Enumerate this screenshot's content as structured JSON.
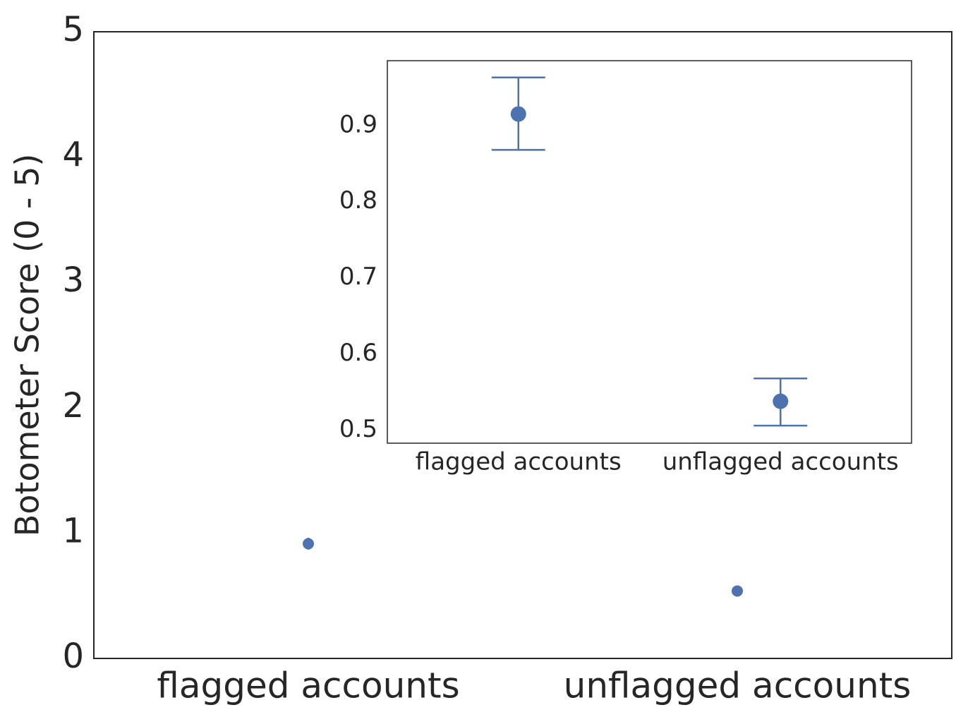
{
  "chart_data": [
    {
      "type": "point",
      "y_label": "Botometer Score (0 - 5)",
      "categories": [
        "flagged accounts",
        "unflagged accounts"
      ],
      "values": [
        0.915,
        0.538
      ],
      "lower": [
        0.868,
        0.506
      ],
      "upper": [
        0.963,
        0.568
      ],
      "color": "#4c72b0",
      "ylim": [
        0,
        5
      ],
      "yticks": [
        0,
        1,
        2,
        3,
        4,
        5
      ],
      "grid": false
    },
    {
      "type": "point",
      "categories": [
        "flagged accounts",
        "unflagged accounts"
      ],
      "values": [
        0.915,
        0.538
      ],
      "lower": [
        0.868,
        0.506
      ],
      "upper": [
        0.963,
        0.568
      ],
      "color": "#4c72b0",
      "ylim": [
        0.483,
        0.985
      ],
      "yticks": [
        0.5,
        0.6,
        0.7,
        0.8,
        0.9
      ],
      "grid": false
    }
  ]
}
